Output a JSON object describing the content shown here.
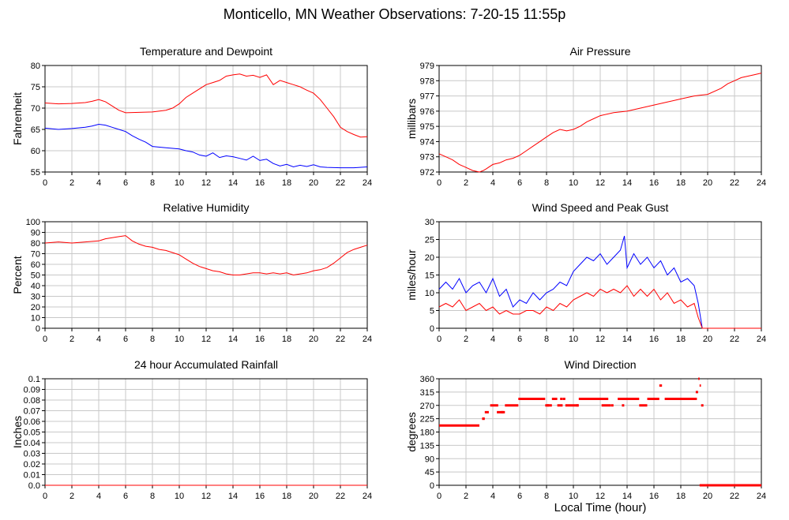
{
  "page": {
    "title": "Monticello, MN Weather Observations: 7-20-15 11:55p",
    "xlabel": "Local Time (hour)"
  },
  "colors": {
    "red": "#ff0000",
    "blue": "#0000ff",
    "grid": "#c8c8c8",
    "frame": "#000000"
  },
  "chart_data": [
    {
      "type": "line",
      "title": "Temperature and Dewpoint",
      "xlabel": "",
      "ylabel": "Fahrenheit",
      "xlim": [
        0,
        24
      ],
      "ylim": [
        55,
        80
      ],
      "xticks": [
        "0",
        "2",
        "4",
        "6",
        "8",
        "10",
        "12",
        "14",
        "16",
        "18",
        "20",
        "22",
        "24"
      ],
      "yticks": [
        "55",
        "60",
        "65",
        "70",
        "75",
        "80"
      ],
      "grid": true,
      "series": [
        {
          "color": "red",
          "x": [
            0,
            1,
            2,
            3,
            3.5,
            4,
            4.5,
            5,
            5.5,
            6,
            7,
            8,
            9,
            9.5,
            10,
            10.5,
            11,
            11.5,
            12,
            12.5,
            13,
            13.5,
            14,
            14.5,
            15,
            15.5,
            16,
            16.5,
            17,
            17.5,
            18,
            18.5,
            19,
            19.5,
            20,
            20.5,
            21,
            21.5,
            22,
            22.5,
            23,
            23.5,
            24
          ],
          "y": [
            71.2,
            71,
            71.1,
            71.3,
            71.6,
            72,
            71.5,
            70.5,
            69.5,
            68.9,
            69,
            69.1,
            69.5,
            70,
            71,
            72.5,
            73.5,
            74.5,
            75.5,
            76,
            76.5,
            77.5,
            77.8,
            78,
            77.5,
            77.7,
            77.2,
            77.8,
            75.5,
            76.5,
            76,
            75.5,
            75,
            74.2,
            73.5,
            72,
            70,
            68,
            65.5,
            64.5,
            63.8,
            63.2,
            63.3
          ]
        },
        {
          "color": "blue",
          "x": [
            0,
            1,
            2,
            3,
            3.5,
            4,
            4.5,
            5,
            5.5,
            6,
            6.5,
            7,
            7.5,
            8,
            9,
            10,
            10.5,
            11,
            11.5,
            12,
            12.5,
            13,
            13.5,
            14,
            14.5,
            15,
            15.5,
            16,
            16.5,
            17,
            17.5,
            18,
            18.5,
            19,
            19.5,
            20,
            20.5,
            21,
            22,
            23,
            24
          ],
          "y": [
            65.3,
            65,
            65.2,
            65.5,
            65.8,
            66.2,
            66,
            65.5,
            65,
            64.5,
            63.5,
            62.7,
            62,
            61,
            60.7,
            60.4,
            60,
            59.7,
            59,
            58.7,
            59.5,
            58.4,
            58.8,
            58.6,
            58.2,
            57.8,
            58.7,
            57.7,
            58,
            57,
            56.4,
            56.8,
            56.2,
            56.6,
            56.3,
            56.7,
            56.2,
            56.1,
            56,
            56,
            56.2
          ]
        }
      ]
    },
    {
      "type": "line",
      "title": "Air Pressure",
      "xlabel": "",
      "ylabel": "millibars",
      "xlim": [
        0,
        24
      ],
      "ylim": [
        972,
        979
      ],
      "xticks": [
        "0",
        "2",
        "4",
        "6",
        "8",
        "10",
        "12",
        "14",
        "16",
        "18",
        "20",
        "22",
        "24"
      ],
      "yticks": [
        "972",
        "973",
        "974",
        "975",
        "976",
        "977",
        "978",
        "979"
      ],
      "grid": true,
      "series": [
        {
          "color": "red",
          "x": [
            0,
            0.5,
            1,
            1.5,
            2,
            2.5,
            3,
            3.3,
            3.5,
            4,
            4.5,
            5,
            5.5,
            6,
            6.5,
            7,
            7.5,
            8,
            8.5,
            9,
            9.5,
            10,
            10.5,
            11,
            11.5,
            12,
            13,
            14,
            15,
            16,
            17,
            18,
            19,
            20,
            21,
            21.5,
            22,
            22.5,
            23,
            23.5,
            24
          ],
          "y": [
            973.2,
            973,
            972.8,
            972.5,
            972.3,
            972.1,
            972,
            972.1,
            972.2,
            972.5,
            972.6,
            972.8,
            972.9,
            973.1,
            973.4,
            973.7,
            974,
            974.3,
            974.6,
            974.8,
            974.7,
            974.8,
            975,
            975.3,
            975.5,
            975.7,
            975.9,
            976,
            976.2,
            976.4,
            976.6,
            976.8,
            977,
            977.1,
            977.5,
            977.8,
            978,
            978.2,
            978.3,
            978.4,
            978.5
          ]
        }
      ]
    },
    {
      "type": "line",
      "title": "Relative Humidity",
      "xlabel": "",
      "ylabel": "Percent",
      "xlim": [
        0,
        24
      ],
      "ylim": [
        0,
        100
      ],
      "xticks": [
        "0",
        "2",
        "4",
        "6",
        "8",
        "10",
        "12",
        "14",
        "16",
        "18",
        "20",
        "22",
        "24"
      ],
      "yticks": [
        "0",
        "10",
        "20",
        "30",
        "40",
        "50",
        "60",
        "70",
        "80",
        "90",
        "100"
      ],
      "grid": true,
      "series": [
        {
          "color": "red",
          "x": [
            0,
            1,
            2,
            3,
            4,
            4.5,
            5,
            5.5,
            6,
            6.5,
            7,
            7.5,
            8,
            8.5,
            9,
            9.5,
            10,
            10.5,
            11,
            11.5,
            12,
            12.5,
            13,
            13.5,
            14,
            14.5,
            15,
            15.5,
            16,
            16.5,
            17,
            17.5,
            18,
            18.5,
            19,
            19.5,
            20,
            20.5,
            21,
            21.5,
            22,
            22.5,
            23,
            23.5,
            24
          ],
          "y": [
            80,
            81,
            80,
            81,
            82,
            84,
            85,
            86,
            87,
            82,
            79,
            77,
            76,
            74,
            73,
            71,
            69,
            65,
            61,
            58,
            56,
            54,
            53,
            51,
            50,
            50,
            51,
            52,
            52,
            51,
            52,
            51,
            52,
            50,
            51,
            52,
            54,
            55,
            57,
            61,
            66,
            71,
            74,
            76,
            78
          ]
        }
      ]
    },
    {
      "type": "line",
      "title": "Wind Speed and Peak Gust",
      "xlabel": "",
      "ylabel": "miles/hour",
      "xlim": [
        0,
        24
      ],
      "ylim": [
        0,
        30
      ],
      "xticks": [
        "0",
        "2",
        "4",
        "6",
        "8",
        "10",
        "12",
        "14",
        "16",
        "18",
        "20",
        "22",
        "24"
      ],
      "yticks": [
        "0",
        "5",
        "10",
        "15",
        "20",
        "25",
        "30"
      ],
      "grid": true,
      "series": [
        {
          "color": "blue",
          "x": [
            0,
            0.5,
            1,
            1.5,
            2,
            2.5,
            3,
            3.5,
            4,
            4.5,
            5,
            5.5,
            6,
            6.5,
            7,
            7.5,
            8,
            8.5,
            9,
            9.5,
            10,
            10.5,
            11,
            11.5,
            12,
            12.5,
            13,
            13.5,
            13.8,
            14,
            14.5,
            15,
            15.5,
            16,
            16.5,
            17,
            17.5,
            18,
            18.5,
            19,
            19.3,
            19.6,
            20,
            21,
            22,
            23,
            24
          ],
          "y": [
            11,
            13,
            11,
            14,
            10,
            12,
            13,
            10,
            14,
            9,
            11,
            6,
            8,
            7,
            10,
            8,
            10,
            11,
            13,
            12,
            16,
            18,
            20,
            19,
            21,
            18,
            20,
            22,
            26,
            17,
            21,
            18,
            20,
            17,
            19,
            15,
            17,
            13,
            14,
            12,
            7,
            0,
            0,
            0,
            0,
            0,
            0
          ]
        },
        {
          "color": "red",
          "x": [
            0,
            0.5,
            1,
            1.5,
            2,
            2.5,
            3,
            3.5,
            4,
            4.5,
            5,
            5.5,
            6,
            6.5,
            7,
            7.5,
            8,
            8.5,
            9,
            9.5,
            10,
            10.5,
            11,
            11.5,
            12,
            12.5,
            13,
            13.5,
            14,
            14.5,
            15,
            15.5,
            16,
            16.5,
            17,
            17.5,
            18,
            18.5,
            19,
            19.3,
            19.6,
            20,
            21,
            22,
            23,
            24
          ],
          "y": [
            6,
            7,
            6,
            8,
            5,
            6,
            7,
            5,
            6,
            4,
            5,
            4,
            4,
            5,
            5,
            4,
            6,
            5,
            7,
            6,
            8,
            9,
            10,
            9,
            11,
            10,
            11,
            10,
            12,
            9,
            11,
            9,
            11,
            8,
            10,
            7,
            8,
            6,
            7,
            3,
            0,
            0,
            0,
            0,
            0,
            0
          ]
        }
      ]
    },
    {
      "type": "line",
      "title": "24 hour Accumulated Rainfall",
      "xlabel": "",
      "ylabel": "Inches",
      "xlim": [
        0,
        24
      ],
      "ylim": [
        0,
        0.1
      ],
      "xticks": [
        "0",
        "2",
        "4",
        "6",
        "8",
        "10",
        "12",
        "14",
        "16",
        "18",
        "20",
        "22",
        "24"
      ],
      "yticks": [
        "0.0",
        "0.01",
        "0.02",
        "0.03",
        "0.04",
        "0.05",
        "0.06",
        "0.07",
        "0.08",
        "0.09",
        "0.1"
      ],
      "grid": true,
      "series": [
        {
          "color": "red",
          "x": [
            0,
            24
          ],
          "y": [
            0,
            0
          ]
        }
      ]
    },
    {
      "type": "scatter",
      "title": "Wind Direction",
      "xlabel": "",
      "ylabel": "degrees",
      "xlim": [
        0,
        24
      ],
      "ylim": [
        0,
        360
      ],
      "xticks": [
        "0",
        "2",
        "4",
        "6",
        "8",
        "10",
        "12",
        "14",
        "16",
        "18",
        "20",
        "22",
        "24"
      ],
      "yticks": [
        "0",
        "45",
        "90",
        "135",
        "180",
        "225",
        "270",
        "315",
        "360"
      ],
      "grid": true,
      "series": [
        {
          "color": "red",
          "segments": [
            [
              0,
              3,
              202
            ],
            [
              3.2,
              3.4,
              225
            ],
            [
              3.4,
              3.7,
              247
            ],
            [
              3.8,
              4.4,
              270
            ],
            [
              4.3,
              4.9,
              247
            ],
            [
              4.9,
              5.9,
              270
            ],
            [
              5.9,
              7.9,
              292
            ],
            [
              7.9,
              8.4,
              270
            ],
            [
              8.4,
              8.8,
              292
            ],
            [
              8.8,
              9.2,
              270
            ],
            [
              9.2,
              9.4,
              292
            ],
            [
              9.4,
              10.4,
              270
            ],
            [
              10.4,
              12.6,
              292
            ],
            [
              12.1,
              12.8,
              270
            ],
            [
              13.3,
              14.9,
              292
            ],
            [
              14.9,
              15.5,
              270
            ],
            [
              15.5,
              16.4,
              292
            ],
            [
              16.4,
              16.6,
              337
            ],
            [
              16.8,
              19.2,
              292
            ],
            [
              19.3,
              19.4,
              360
            ],
            [
              19.4,
              19.5,
              337
            ],
            [
              19.4,
              24,
              0
            ]
          ],
          "points": [
            [
              3.3,
              225
            ],
            [
              4.7,
              247
            ],
            [
              8.1,
              270
            ],
            [
              9.1,
              292
            ],
            [
              10.3,
              270
            ],
            [
              12.9,
              270
            ],
            [
              13.7,
              270
            ],
            [
              19.2,
              315
            ],
            [
              19.6,
              270
            ]
          ]
        }
      ]
    }
  ]
}
